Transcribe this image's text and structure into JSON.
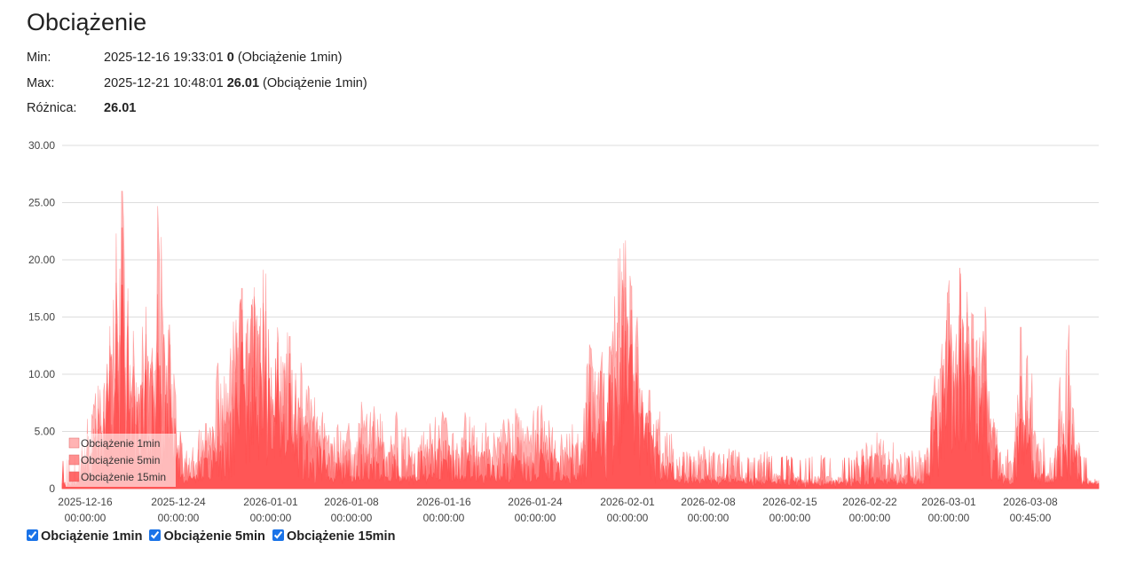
{
  "page": {
    "title": "Obciążenie"
  },
  "stats": {
    "min": {
      "label": "Min:",
      "timestamp": "2025-12-16 19:33:01",
      "value": "0",
      "series": "(Obciążenie 1min)"
    },
    "max": {
      "label": "Max:",
      "timestamp": "2025-12-21 10:48:01",
      "value": "26.01",
      "series": "(Obciążenie 1min)"
    },
    "diff": {
      "label": "Różnica:",
      "value": "26.01"
    }
  },
  "toggles": [
    {
      "label": "Obciążenie 1min",
      "checked": true
    },
    {
      "label": "Obciążenie 5min",
      "checked": true
    },
    {
      "label": "Obciążenie 15min",
      "checked": true
    }
  ],
  "chart_data": {
    "type": "area",
    "ylim": [
      0,
      30
    ],
    "y_ticks": [
      "0",
      "5.00",
      "10.00",
      "15.00",
      "20.00",
      "25.00",
      "30.00"
    ],
    "x_ticks": [
      {
        "date": "2025-12-16",
        "time": "00:00:00"
      },
      {
        "date": "2025-12-24",
        "time": "00:00:00"
      },
      {
        "date": "2026-01-01",
        "time": "00:00:00"
      },
      {
        "date": "2026-01-08",
        "time": "00:00:00"
      },
      {
        "date": "2026-01-16",
        "time": "00:00:00"
      },
      {
        "date": "2026-01-24",
        "time": "00:00:00"
      },
      {
        "date": "2026-02-01",
        "time": "00:00:00"
      },
      {
        "date": "2026-02-08",
        "time": "00:00:00"
      },
      {
        "date": "2026-02-15",
        "time": "00:00:00"
      },
      {
        "date": "2026-02-22",
        "time": "00:00:00"
      },
      {
        "date": "2026-03-01",
        "time": "00:00:00"
      },
      {
        "date": "2026-03-08",
        "time": "00:45:00"
      }
    ],
    "grid": true,
    "legend_position": "bottom-left",
    "series": [
      {
        "name": "Obciążenie 1min",
        "color": "#ff9a9a",
        "opacity": 0.75,
        "points": [
          [
            "2025-12-16",
            0.3
          ],
          [
            "2025-12-19",
            9.0
          ],
          [
            "2025-12-20",
            14.2
          ],
          [
            "2025-12-20 12:00",
            22.3
          ],
          [
            "2025-12-21",
            26.0
          ],
          [
            "2025-12-21 12:00",
            17.5
          ],
          [
            "2025-12-22",
            10.8
          ],
          [
            "2025-12-23",
            15.9
          ],
          [
            "2025-12-23 12:00",
            12.3
          ],
          [
            "2025-12-24",
            24.7
          ],
          [
            "2025-12-25",
            12.6
          ],
          [
            "2025-12-26",
            4.0
          ],
          [
            "2025-12-28",
            5.7
          ],
          [
            "2025-12-29",
            11.0
          ],
          [
            "2025-12-31",
            17.5
          ],
          [
            "2026-01-01",
            17.6
          ],
          [
            "2026-01-02",
            18.8
          ],
          [
            "2026-01-03",
            14.1
          ],
          [
            "2026-01-04",
            13.3
          ],
          [
            "2026-01-05",
            10.0
          ],
          [
            "2026-01-09",
            4.4
          ],
          [
            "2026-01-10",
            7.6
          ],
          [
            "2026-01-11",
            7.2
          ],
          [
            "2026-01-13",
            5.9
          ],
          [
            "2026-01-17",
            6.2
          ],
          [
            "2026-01-19",
            6.3
          ],
          [
            "2026-01-23",
            6.6
          ],
          [
            "2026-01-25",
            7.3
          ],
          [
            "2026-01-28",
            4.8
          ],
          [
            "2026-01-29",
            12.6
          ],
          [
            "2026-02-01",
            21.7
          ],
          [
            "2026-02-01 12:00",
            17.7
          ],
          [
            "2026-02-02",
            15.0
          ],
          [
            "2026-02-03",
            8.6
          ],
          [
            "2026-02-05",
            3.5
          ],
          [
            "2026-02-08",
            3.4
          ],
          [
            "2026-02-10",
            3.3
          ],
          [
            "2026-02-13",
            2.3
          ],
          [
            "2026-02-18",
            1.6
          ],
          [
            "2026-02-22",
            4.9
          ],
          [
            "2026-02-25",
            2.4
          ],
          [
            "2026-02-28",
            18.2
          ],
          [
            "2026-03-01",
            18.8
          ],
          [
            "2026-03-01 12:00",
            17.2
          ],
          [
            "2026-03-02",
            15.2
          ],
          [
            "2026-03-03",
            15.9
          ],
          [
            "2026-03-04",
            5.2
          ],
          [
            "2026-03-05",
            2.2
          ],
          [
            "2026-03-06",
            14.1
          ],
          [
            "2026-03-08",
            2.6
          ],
          [
            "2026-03-10",
            14.3
          ],
          [
            "2026-03-11",
            1.9
          ],
          [
            "2026-03-12",
            1.0
          ]
        ]
      },
      {
        "name": "Obciążenie 5min",
        "color": "#ff7373",
        "opacity": 0.8,
        "points": [
          [
            "2025-12-16",
            0.2
          ],
          [
            "2025-12-19",
            7.0
          ],
          [
            "2025-12-20",
            12.5
          ],
          [
            "2025-12-20 12:00",
            18.0
          ],
          [
            "2025-12-21",
            22.8
          ],
          [
            "2025-12-21 12:00",
            16.4
          ],
          [
            "2025-12-22",
            9.6
          ],
          [
            "2025-12-23",
            13.5
          ],
          [
            "2025-12-23 12:00",
            11.1
          ],
          [
            "2025-12-24",
            17.0
          ],
          [
            "2025-12-25",
            11.0
          ],
          [
            "2025-12-26",
            2.9
          ],
          [
            "2025-12-28",
            4.2
          ],
          [
            "2025-12-29",
            7.8
          ],
          [
            "2025-12-31",
            15.6
          ],
          [
            "2026-01-01",
            16.8
          ],
          [
            "2026-01-02",
            15.5
          ],
          [
            "2026-01-03",
            12.8
          ],
          [
            "2026-01-04",
            11.8
          ],
          [
            "2026-01-05",
            7.0
          ],
          [
            "2026-01-09",
            3.1
          ],
          [
            "2026-01-10",
            5.3
          ],
          [
            "2026-01-11",
            4.9
          ],
          [
            "2026-01-13",
            3.6
          ],
          [
            "2026-01-17",
            4.2
          ],
          [
            "2026-01-19",
            4.1
          ],
          [
            "2026-01-23",
            4.5
          ],
          [
            "2026-01-25",
            5.3
          ],
          [
            "2026-01-28",
            3.2
          ],
          [
            "2026-01-29",
            10.9
          ],
          [
            "2026-02-01",
            17.6
          ],
          [
            "2026-02-01 12:00",
            15.6
          ],
          [
            "2026-02-02",
            12.4
          ],
          [
            "2026-02-03",
            6.8
          ],
          [
            "2026-02-05",
            2.2
          ],
          [
            "2026-02-08",
            2.3
          ],
          [
            "2026-02-10",
            2.0
          ],
          [
            "2026-02-13",
            1.4
          ],
          [
            "2026-02-18",
            0.9
          ],
          [
            "2026-02-22",
            3.1
          ],
          [
            "2026-02-25",
            1.5
          ],
          [
            "2026-02-28",
            16.2
          ],
          [
            "2026-03-01",
            16.9
          ],
          [
            "2026-03-01 12:00",
            15.4
          ],
          [
            "2026-03-02",
            13.1
          ],
          [
            "2026-03-03",
            12.8
          ],
          [
            "2026-03-04",
            3.9
          ],
          [
            "2026-03-05",
            1.4
          ],
          [
            "2026-03-06",
            9.8
          ],
          [
            "2026-03-08",
            1.6
          ],
          [
            "2026-03-10",
            9.9
          ],
          [
            "2026-03-11",
            1.2
          ],
          [
            "2026-03-12",
            0.7
          ]
        ]
      },
      {
        "name": "Obciążenie 15min",
        "color": "#ff4f4f",
        "opacity": 0.85,
        "points": [
          [
            "2025-12-16",
            0.2
          ],
          [
            "2025-12-19",
            5.2
          ],
          [
            "2025-12-20",
            10.3
          ],
          [
            "2025-12-20 12:00",
            14.4
          ],
          [
            "2025-12-21",
            17.8
          ],
          [
            "2025-12-21 12:00",
            14.2
          ],
          [
            "2025-12-22",
            8.1
          ],
          [
            "2025-12-23",
            10.4
          ],
          [
            "2025-12-23 12:00",
            9.0
          ],
          [
            "2025-12-24",
            11.9
          ],
          [
            "2025-12-25",
            8.7
          ],
          [
            "2025-12-26",
            1.9
          ],
          [
            "2025-12-28",
            2.7
          ],
          [
            "2025-12-29",
            4.6
          ],
          [
            "2025-12-31",
            12.8
          ],
          [
            "2026-01-01",
            14.2
          ],
          [
            "2026-01-02",
            12.3
          ],
          [
            "2026-01-03",
            10.4
          ],
          [
            "2026-01-04",
            9.2
          ],
          [
            "2026-01-05",
            4.6
          ],
          [
            "2026-01-09",
            1.9
          ],
          [
            "2026-01-10",
            3.0
          ],
          [
            "2026-01-11",
            2.8
          ],
          [
            "2026-01-13",
            2.0
          ],
          [
            "2026-01-17",
            2.5
          ],
          [
            "2026-01-19",
            2.4
          ],
          [
            "2026-01-23",
            2.6
          ],
          [
            "2026-01-25",
            3.1
          ],
          [
            "2026-01-28",
            1.9
          ],
          [
            "2026-01-29",
            7.6
          ],
          [
            "2026-02-01",
            13.8
          ],
          [
            "2026-02-01 12:00",
            12.6
          ],
          [
            "2026-02-02",
            9.6
          ],
          [
            "2026-02-03",
            4.9
          ],
          [
            "2026-02-05",
            1.3
          ],
          [
            "2026-02-08",
            1.4
          ],
          [
            "2026-02-10",
            1.2
          ],
          [
            "2026-02-13",
            0.9
          ],
          [
            "2026-02-18",
            0.6
          ],
          [
            "2026-02-22",
            1.6
          ],
          [
            "2026-02-25",
            0.9
          ],
          [
            "2026-02-28",
            13.0
          ],
          [
            "2026-03-01",
            14.0
          ],
          [
            "2026-03-01 12:00",
            12.9
          ],
          [
            "2026-03-02",
            10.7
          ],
          [
            "2026-03-03",
            9.4
          ],
          [
            "2026-03-04",
            2.5
          ],
          [
            "2026-03-05",
            0.9
          ],
          [
            "2026-03-06",
            6.1
          ],
          [
            "2026-03-08",
            0.9
          ],
          [
            "2026-03-10",
            6.0
          ],
          [
            "2026-03-11",
            0.8
          ],
          [
            "2026-03-12",
            0.5
          ]
        ]
      }
    ]
  }
}
